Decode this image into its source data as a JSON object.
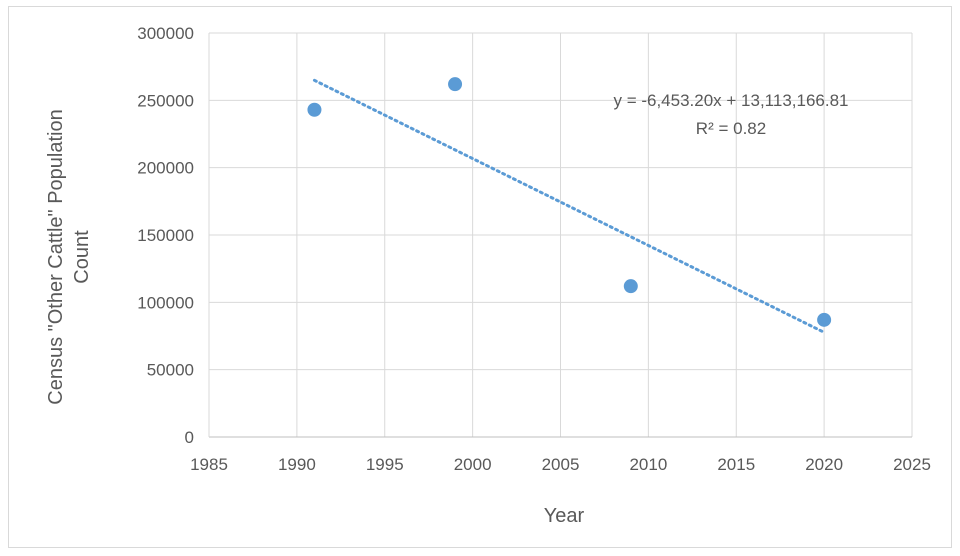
{
  "chart_data": {
    "type": "scatter",
    "title": "",
    "xlabel": "Year",
    "ylabel_lines": [
      "Census \"Other Cattle\" Population",
      "Count"
    ],
    "xlim": [
      1985,
      2025
    ],
    "ylim": [
      0,
      300000
    ],
    "x_ticks": [
      1985,
      1990,
      1995,
      2000,
      2005,
      2010,
      2015,
      2020,
      2025
    ],
    "y_ticks": [
      0,
      50000,
      100000,
      150000,
      200000,
      250000,
      300000
    ],
    "grid": true,
    "marker_color": "#5b9bd5",
    "series": [
      {
        "x": [
          1991,
          1999,
          2009,
          2020
        ],
        "y": [
          243000,
          262000,
          112000,
          87000
        ]
      }
    ],
    "trendline": {
      "type": "linear",
      "style": "dotted",
      "color": "#5b9bd5",
      "x_range": [
        1991,
        2020
      ],
      "slope": -6453.2,
      "intercept": 13113166.81,
      "equation_text": "y = -6,453.20x + 13,113,166.81",
      "r2_text": "R² = 0.82"
    }
  }
}
